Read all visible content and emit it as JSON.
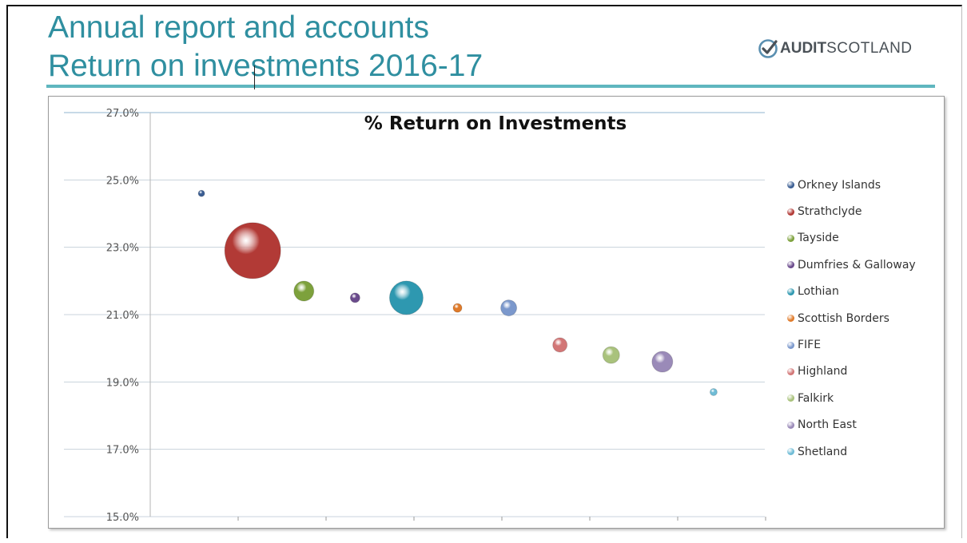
{
  "page": {
    "title_line1": "Annual report and accounts",
    "title_line2": "Return on investments 2016-17"
  },
  "logo": {
    "bold_text": "AUDIT",
    "light_text": "SCOTLAND",
    "icon": "check-badge-icon"
  },
  "colors": {
    "title": "#2f8fa0",
    "rule": "#5fb6bf"
  },
  "chart_data": {
    "type": "bubble",
    "title": "% Return on Investments",
    "xlabel": "",
    "ylabel": "",
    "ylim": [
      15.0,
      27.0
    ],
    "yticks": [
      "15.0%",
      "17.0%",
      "19.0%",
      "21.0%",
      "23.0%",
      "25.0%",
      "27.0%"
    ],
    "xlim": [
      0,
      12
    ],
    "grid": "horizontal",
    "legend_position": "right",
    "series": [
      {
        "name": "Orkney Islands",
        "x": 1,
        "y": 24.6,
        "size": 8,
        "color": "#3b5e93"
      },
      {
        "name": "Strathclyde",
        "x": 2,
        "y": 22.9,
        "size": 62,
        "color": "#b23a36"
      },
      {
        "name": "Tayside",
        "x": 3,
        "y": 21.7,
        "size": 25,
        "color": "#7da13c"
      },
      {
        "name": "Dumfries & Galloway",
        "x": 4,
        "y": 21.5,
        "size": 12,
        "color": "#6a4a8c"
      },
      {
        "name": "Lothian",
        "x": 5,
        "y": 21.5,
        "size": 34,
        "color": "#2e98b0"
      },
      {
        "name": "Scottish Borders",
        "x": 6,
        "y": 21.2,
        "size": 11,
        "color": "#e07b2a"
      },
      {
        "name": "FIFE",
        "x": 7,
        "y": 21.2,
        "size": 20,
        "color": "#7b98cc"
      },
      {
        "name": "Highland",
        "x": 8,
        "y": 20.1,
        "size": 18,
        "color": "#d27676"
      },
      {
        "name": "Falkirk",
        "x": 9,
        "y": 19.8,
        "size": 21,
        "color": "#a9c27c"
      },
      {
        "name": "North East",
        "x": 10,
        "y": 19.6,
        "size": 26,
        "color": "#9a8ab8"
      },
      {
        "name": "Shetland",
        "x": 11,
        "y": 18.7,
        "size": 9,
        "color": "#6fbcd6"
      }
    ]
  }
}
